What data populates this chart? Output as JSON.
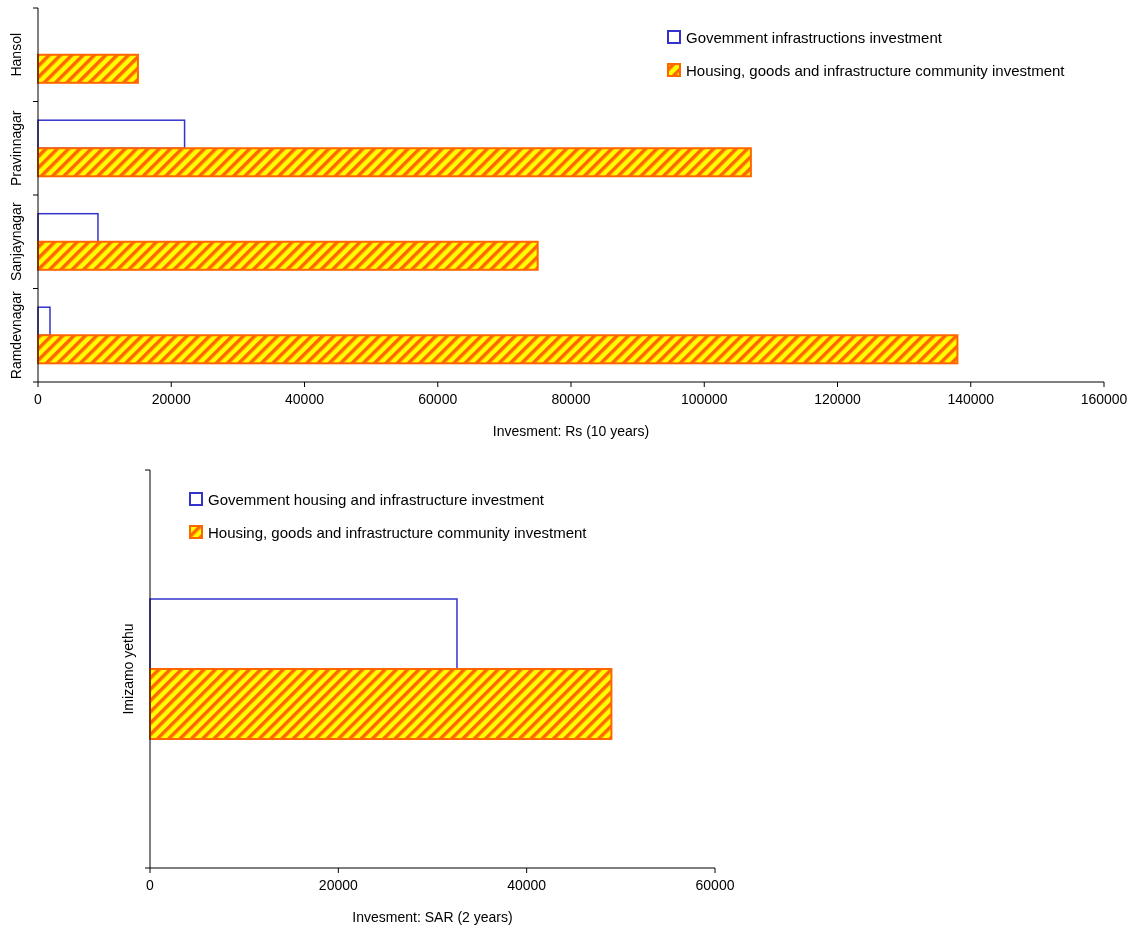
{
  "chart_data": [
    {
      "type": "bar",
      "orientation": "horizontal",
      "categories": [
        "Hansol",
        "Pravinnagar",
        "Sanjaynagar",
        "Ramdevnagar"
      ],
      "xlabel": "Invesment: Rs (10 years)",
      "xlim": [
        0,
        160000
      ],
      "xticks": [
        0,
        20000,
        40000,
        60000,
        80000,
        100000,
        120000,
        140000,
        160000
      ],
      "legend": "top right",
      "series": [
        {
          "name": "Govemment infrastructions investment",
          "color": "#3333cc",
          "values": [
            null,
            22000,
            9000,
            1800
          ]
        },
        {
          "name": "Housing, goods and infrastructure community investment",
          "color": "#ff6600",
          "values": [
            15000,
            107000,
            75000,
            138000
          ]
        }
      ]
    },
    {
      "type": "bar",
      "orientation": "horizontal",
      "categories": [
        "Imizamo yethu"
      ],
      "xlabel": "Invesment: SAR  (2 years)",
      "xlim": [
        0,
        60000
      ],
      "xticks": [
        0,
        20000,
        40000,
        60000
      ],
      "legend": "top left",
      "series": [
        {
          "name": "Govemment housing and infrastructure investment",
          "color": "#3333cc",
          "values": [
            32600
          ]
        },
        {
          "name": "Housing, goods and infrastructure community investment",
          "color": "#ff6600",
          "values": [
            49000
          ]
        }
      ]
    }
  ]
}
